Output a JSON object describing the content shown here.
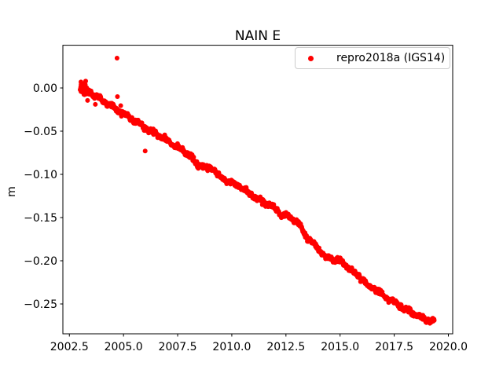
{
  "chart_data": {
    "type": "scatter",
    "title": "NAIN E",
    "xlabel": "",
    "ylabel": "m",
    "grid": false,
    "legend_position": "upper right",
    "xlim": [
      2002.2,
      2020.2
    ],
    "ylim": [
      -0.28455,
      0.04945
    ],
    "xticks": [
      2002.5,
      2005.0,
      2007.5,
      2010.0,
      2012.5,
      2015.0,
      2017.5,
      2020.0
    ],
    "xtick_labels": [
      "2002.5",
      "2005.0",
      "2007.5",
      "2010.0",
      "2012.5",
      "2015.0",
      "2017.5",
      "2020.0"
    ],
    "yticks": [
      0.0,
      -0.05,
      -0.1,
      -0.15,
      -0.2,
      -0.25
    ],
    "ytick_labels": [
      "0.00",
      "−0.05",
      "−0.10",
      "−0.15",
      "−0.20",
      "−0.25"
    ],
    "colors": {
      "marker": "#ff0000",
      "text": "#000000",
      "spine": "#000000",
      "legend_border": "#cccccc",
      "background": "#ffffff"
    },
    "series": [
      {
        "name": "repro2018a (IGS14)",
        "color": "#ff0000",
        "marker": "dot",
        "marker_diameter_px": 6,
        "sampling": {
          "x_start": 2003.0,
          "x_end": 2019.35,
          "step_years": 0.0135,
          "seed": 42,
          "noise_sd": 0.0013,
          "wiggle": [
            {
              "period": 0.62,
              "amp": 0.0013,
              "phase": 1.3
            },
            {
              "period": 0.21,
              "amp": 0.0008,
              "phase": 4.0
            }
          ]
        },
        "trend_points": [
          [
            2003.0,
            0.001
          ],
          [
            2003.5,
            -0.0055
          ],
          [
            2004.0,
            -0.014
          ],
          [
            2005.0,
            -0.03
          ],
          [
            2006.0,
            -0.046
          ],
          [
            2007.0,
            -0.06
          ],
          [
            2008.0,
            -0.077
          ],
          [
            2008.5,
            -0.088
          ],
          [
            2009.0,
            -0.095
          ],
          [
            2009.5,
            -0.104
          ],
          [
            2010.0,
            -0.11
          ],
          [
            2011.0,
            -0.125
          ],
          [
            2012.0,
            -0.14
          ],
          [
            2013.0,
            -0.155
          ],
          [
            2013.5,
            -0.174
          ],
          [
            2014.0,
            -0.186
          ],
          [
            2014.4,
            -0.197
          ],
          [
            2015.0,
            -0.2
          ],
          [
            2016.0,
            -0.221
          ],
          [
            2017.0,
            -0.24
          ],
          [
            2018.0,
            -0.256
          ],
          [
            2019.0,
            -0.2685
          ],
          [
            2019.35,
            -0.27
          ]
        ],
        "bumps": [
          {
            "center": 2008.35,
            "amp": -0.004,
            "width": 0.13
          },
          {
            "center": 2009.15,
            "amp": 0.005,
            "width": 0.13
          },
          {
            "center": 2010.35,
            "amp": 0.003,
            "width": 0.1
          },
          {
            "center": 2012.3,
            "amp": -0.0035,
            "width": 0.1
          },
          {
            "center": 2016.3,
            "amp": -0.004,
            "width": 0.12
          }
        ],
        "dense_start": {
          "from": 2003.02,
          "to": 2003.3,
          "count": 90,
          "sd": 0.003
        },
        "outliers": [
          [
            2004.7,
            0.0345
          ],
          [
            2004.72,
            -0.01
          ],
          [
            2004.87,
            -0.0205
          ],
          [
            2003.34,
            -0.0145
          ],
          [
            2003.7,
            -0.019
          ],
          [
            2006.0,
            -0.073
          ]
        ]
      }
    ]
  }
}
